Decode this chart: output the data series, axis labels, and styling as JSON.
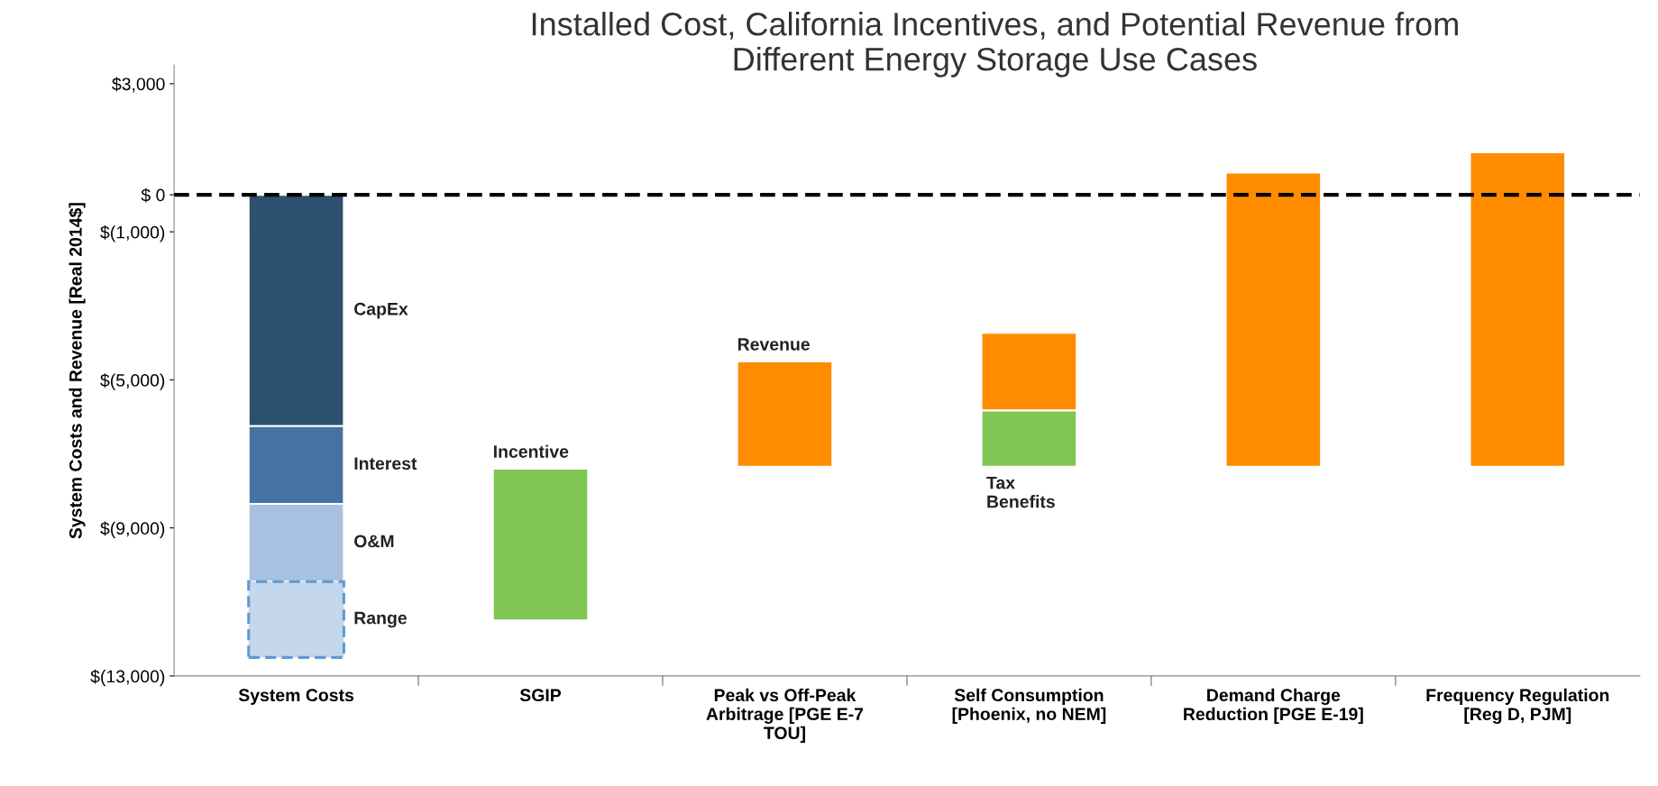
{
  "chart_data": {
    "type": "bar",
    "title": "Installed Cost, California Incentives, and Potential Revenue from\nDifferent Energy Storage Use Cases",
    "ylabel": "System Costs and Revenue [Real 2014$]",
    "categories": [
      "System Costs",
      "SGIP",
      "Peak vs Off-Peak\nArbitrage [PGE E-7\nTOU]",
      "Self Consumption\n[Phoenix, no NEM]",
      "Demand Charge\nReduction [PGE E-19]",
      "Frequency Regulation\n[Reg D, PJM]"
    ],
    "series": [
      {
        "name": "CapEx",
        "color": "#2e5070",
        "base": [
          -6250,
          null,
          null,
          null,
          null,
          null
        ],
        "values": [
          6250,
          null,
          null,
          null,
          null,
          null
        ]
      },
      {
        "name": "Interest",
        "color": "#4674a2",
        "base": [
          -8350,
          null,
          null,
          null,
          null,
          null
        ],
        "values": [
          2100,
          null,
          null,
          null,
          null,
          null
        ]
      },
      {
        "name": "O&M",
        "color": "#a8c1e0",
        "base": [
          -10450,
          null,
          null,
          null,
          null,
          null
        ],
        "values": [
          2100,
          null,
          null,
          null,
          null,
          null
        ]
      },
      {
        "name": "Range",
        "color": "#c5d7ec",
        "line_style": "dashed",
        "base": [
          -12500,
          null,
          null,
          null,
          null,
          null
        ],
        "values": [
          2050,
          null,
          null,
          null,
          null,
          null
        ]
      },
      {
        "name": "Incentive",
        "color": "#7fc655",
        "base": [
          null,
          -11500,
          null,
          null,
          null,
          null
        ],
        "values": [
          null,
          4100,
          null,
          null,
          null,
          null
        ]
      },
      {
        "name": "Revenue",
        "color": "#ff8c00",
        "base": [
          null,
          null,
          -7350,
          -5830,
          -7350,
          -7350
        ],
        "values": [
          null,
          null,
          2850,
          2100,
          7950,
          8500
        ]
      },
      {
        "name": "Tax Benefits",
        "color": "#7fc655",
        "base": [
          null,
          null,
          null,
          -7350,
          null,
          null
        ],
        "values": [
          null,
          null,
          null,
          1520,
          null,
          null
        ]
      }
    ],
    "ylim": [
      -13000,
      3500
    ],
    "yticks": [
      {
        "value": 3000,
        "label": "$3,000"
      },
      {
        "value": 0,
        "label": "$ 0"
      },
      {
        "value": -1000,
        "label": "$(1,000)"
      },
      {
        "value": -5000,
        "label": "$(5,000)"
      },
      {
        "value": -9000,
        "label": "$(9,000)"
      },
      {
        "value": -13000,
        "label": "$(13,000)"
      }
    ],
    "ref_lines": [
      {
        "axis": "y",
        "value": 0,
        "color": "#000000",
        "line_style": "dashed"
      }
    ],
    "grid": false,
    "legend": false
  }
}
